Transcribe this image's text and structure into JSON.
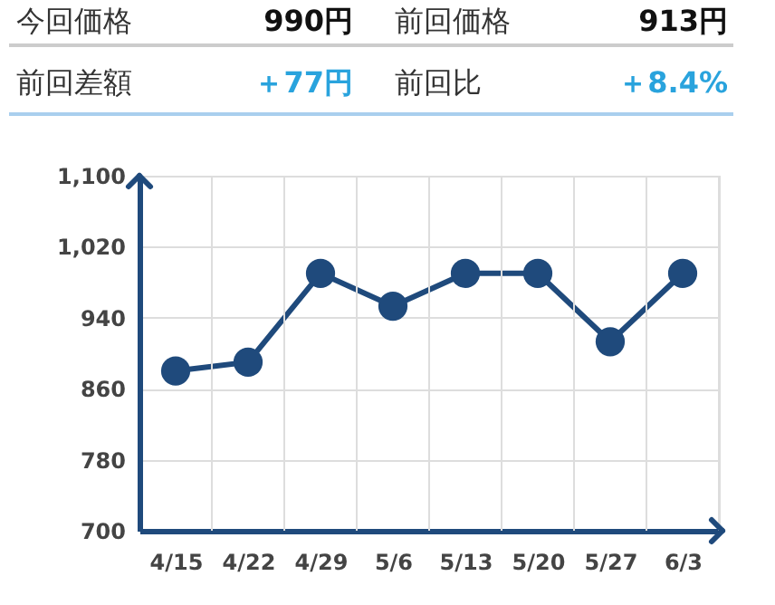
{
  "chart_data": [
    {
      "type": "other",
      "annotations": [
        "今回価格",
        "990円",
        "前回価格",
        "913円",
        "前回差額",
        "＋77円",
        "前回比",
        "＋8.4%"
      ]
    },
    {
      "type": "line",
      "categories": [
        "4/15",
        "4/22",
        "4/29",
        "5/6",
        "5/13",
        "5/20",
        "5/27",
        "6/3"
      ],
      "values": [
        880,
        890,
        990,
        953,
        990,
        990,
        913,
        990
      ],
      "color": "#1f4a7c",
      "marker": "circle",
      "grid": true,
      "ylim": [
        700,
        1100
      ],
      "yticks": [
        700,
        780,
        860,
        940,
        {
          "value": 1020,
          "label": "1,020"
        },
        {
          "value": 1100,
          "label": "1,100"
        }
      ]
    }
  ]
}
